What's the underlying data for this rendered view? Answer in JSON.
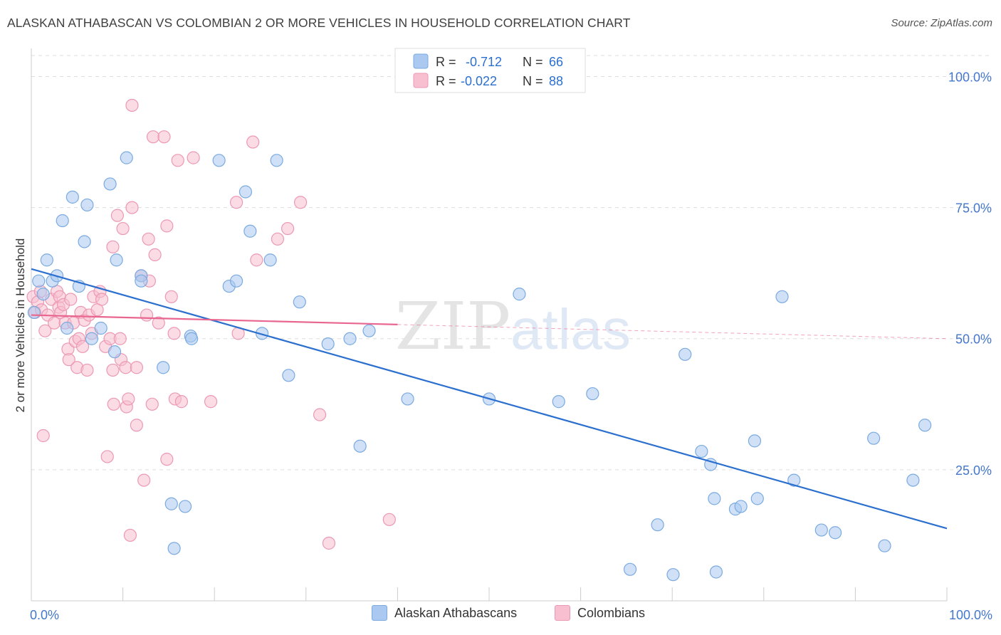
{
  "title": "ALASKAN ATHABASCAN VS COLOMBIAN 2 OR MORE VEHICLES IN HOUSEHOLD CORRELATION CHART",
  "source": "Source: ZipAtlas.com",
  "watermark": {
    "zip": "ZIP",
    "atlas": "atlas"
  },
  "colors": {
    "blue_fill": "#aac8f0",
    "blue_stroke": "#7aaae0",
    "blue_line": "#2b6fcf",
    "pink_fill": "#f7bfd0",
    "pink_stroke": "#ec98b4",
    "pink_line": "#e8668f",
    "axis_label": "#4477cc",
    "grid": "#dddddd"
  },
  "legend": {
    "rows": [
      {
        "r_label": "R =",
        "r_value": "-0.712",
        "n_label": "N =",
        "n_value": "66",
        "series": "blue"
      },
      {
        "r_label": "R =",
        "r_value": "-0.022",
        "n_label": "N =",
        "n_value": "88",
        "series": "pink"
      }
    ]
  },
  "bottom_legend": [
    {
      "label": "Alaskan Athabascans",
      "series": "blue"
    },
    {
      "label": "Colombians",
      "series": "pink"
    }
  ],
  "chart_data": {
    "type": "scatter",
    "xlabel": "",
    "ylabel": "2 or more Vehicles in Household",
    "xlim": [
      0,
      100
    ],
    "ylim": [
      0,
      104
    ],
    "x_tick_labels": [
      {
        "value": 0,
        "label": "0.0%"
      },
      {
        "value": 100,
        "label": "100.0%"
      }
    ],
    "y_tick_labels": [
      {
        "value": 100,
        "label": "100.0%"
      },
      {
        "value": 75,
        "label": "75.0%"
      },
      {
        "value": 50,
        "label": "50.0%"
      },
      {
        "value": 25,
        "label": "25.0%"
      }
    ],
    "series": [
      {
        "name": "Alaskan Athabascans",
        "color": "blue",
        "trend": {
          "x": [
            0,
            100
          ],
          "y": [
            63.3,
            13.8
          ]
        },
        "points": [
          [
            0.3,
            55
          ],
          [
            0.8,
            61
          ],
          [
            1.3,
            58.5
          ],
          [
            1.7,
            65
          ],
          [
            2.3,
            61
          ],
          [
            2.8,
            62
          ],
          [
            3.4,
            72.5
          ],
          [
            3.9,
            52
          ],
          [
            4.5,
            77
          ],
          [
            5.2,
            60
          ],
          [
            5.8,
            68.5
          ],
          [
            6.1,
            75.5
          ],
          [
            6.6,
            50
          ],
          [
            7.6,
            52
          ],
          [
            8.6,
            79.5
          ],
          [
            9.1,
            47.5
          ],
          [
            9.3,
            65
          ],
          [
            10.4,
            84.5
          ],
          [
            12.0,
            62
          ],
          [
            12.0,
            61
          ],
          [
            14.4,
            44.5
          ],
          [
            15.3,
            18.5
          ],
          [
            16.8,
            18
          ],
          [
            15.6,
            10
          ],
          [
            17.4,
            50.5
          ],
          [
            17.5,
            50
          ],
          [
            20.5,
            84
          ],
          [
            21.6,
            60
          ],
          [
            22.4,
            61
          ],
          [
            23.4,
            78
          ],
          [
            23.9,
            70.5
          ],
          [
            25.2,
            51
          ],
          [
            26.1,
            65
          ],
          [
            26.8,
            84
          ],
          [
            28.1,
            43
          ],
          [
            29.3,
            57
          ],
          [
            32.4,
            49
          ],
          [
            34.8,
            50
          ],
          [
            35.9,
            29.5
          ],
          [
            36.9,
            51.5
          ],
          [
            41.1,
            38.5
          ],
          [
            50.0,
            38.5
          ],
          [
            53.3,
            58.5
          ],
          [
            57.6,
            38
          ],
          [
            61.3,
            39.5
          ],
          [
            65.4,
            6
          ],
          [
            68.4,
            14.5
          ],
          [
            70.1,
            5
          ],
          [
            71.4,
            47
          ],
          [
            73.2,
            28.5
          ],
          [
            74.2,
            26
          ],
          [
            74.6,
            19.5
          ],
          [
            74.8,
            5.5
          ],
          [
            76.9,
            17.5
          ],
          [
            77.5,
            18
          ],
          [
            79.0,
            30.5
          ],
          [
            79.3,
            19.5
          ],
          [
            82.0,
            58
          ],
          [
            83.3,
            23
          ],
          [
            86.3,
            13.5
          ],
          [
            87.8,
            13
          ],
          [
            92.0,
            31
          ],
          [
            93.2,
            10.5
          ],
          [
            96.3,
            23
          ],
          [
            97.6,
            33.5
          ]
        ]
      },
      {
        "name": "Colombians",
        "color": "pink",
        "trend": {
          "x": [
            0,
            40
          ],
          "y": [
            54.5,
            52.7
          ]
        },
        "trend_dashed": {
          "x": [
            40,
            100
          ],
          "y": [
            52.7,
            50.0
          ]
        },
        "points": [
          [
            0.2,
            58
          ],
          [
            0.4,
            55
          ],
          [
            0.7,
            57
          ],
          [
            1.0,
            59
          ],
          [
            1.1,
            55.5
          ],
          [
            1.3,
            31.5
          ],
          [
            1.5,
            51.5
          ],
          [
            1.8,
            54.5
          ],
          [
            2.2,
            57.5
          ],
          [
            2.5,
            53
          ],
          [
            2.8,
            59
          ],
          [
            3.0,
            56
          ],
          [
            3.1,
            58
          ],
          [
            3.2,
            55
          ],
          [
            3.5,
            56.5
          ],
          [
            3.7,
            53
          ],
          [
            4.0,
            48
          ],
          [
            4.1,
            46
          ],
          [
            4.3,
            57.5
          ],
          [
            4.6,
            53
          ],
          [
            4.8,
            49.5
          ],
          [
            5.0,
            44.5
          ],
          [
            5.2,
            50
          ],
          [
            5.4,
            55
          ],
          [
            5.6,
            48.5
          ],
          [
            5.8,
            53.5
          ],
          [
            6.1,
            44
          ],
          [
            6.3,
            54.5
          ],
          [
            6.6,
            51
          ],
          [
            6.8,
            58
          ],
          [
            7.2,
            55.5
          ],
          [
            7.5,
            59
          ],
          [
            7.7,
            57.5
          ],
          [
            8.1,
            48.5
          ],
          [
            8.3,
            27.5
          ],
          [
            8.6,
            50
          ],
          [
            8.9,
            44
          ],
          [
            8.9,
            67.5
          ],
          [
            9.0,
            37.5
          ],
          [
            9.4,
            73.5
          ],
          [
            9.7,
            50
          ],
          [
            9.8,
            46
          ],
          [
            10.0,
            71
          ],
          [
            10.3,
            44.5
          ],
          [
            10.4,
            37
          ],
          [
            10.6,
            38.5
          ],
          [
            10.8,
            12.5
          ],
          [
            11.0,
            75
          ],
          [
            11.0,
            94.5
          ],
          [
            11.5,
            44.5
          ],
          [
            11.5,
            33.5
          ],
          [
            12.0,
            62
          ],
          [
            12.3,
            23
          ],
          [
            12.6,
            54.5
          ],
          [
            12.8,
            69
          ],
          [
            12.9,
            61
          ],
          [
            13.2,
            37.5
          ],
          [
            13.3,
            88.5
          ],
          [
            13.5,
            66
          ],
          [
            13.9,
            53
          ],
          [
            14.5,
            88.5
          ],
          [
            14.8,
            71.5
          ],
          [
            14.8,
            27
          ],
          [
            15.3,
            58
          ],
          [
            15.6,
            51
          ],
          [
            15.7,
            38.5
          ],
          [
            16.0,
            84
          ],
          [
            16.4,
            38
          ],
          [
            17.7,
            84.5
          ],
          [
            19.6,
            38
          ],
          [
            22.4,
            76
          ],
          [
            22.6,
            51
          ],
          [
            24.2,
            87.5
          ],
          [
            24.6,
            65
          ],
          [
            26.9,
            69
          ],
          [
            28.0,
            71
          ],
          [
            29.4,
            76
          ],
          [
            31.5,
            35.5
          ],
          [
            32.5,
            11
          ],
          [
            39.1,
            15.5
          ]
        ]
      }
    ]
  }
}
